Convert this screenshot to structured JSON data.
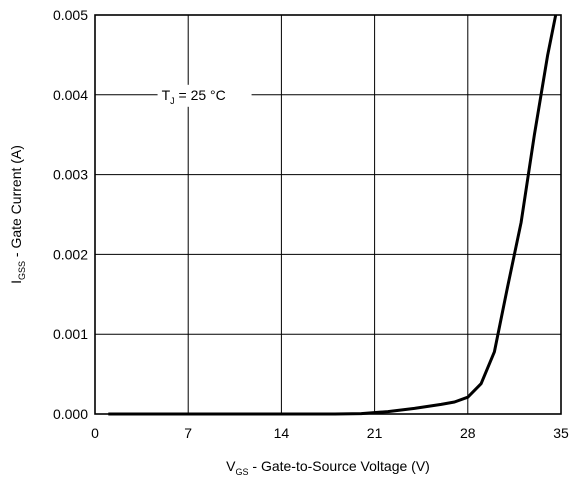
{
  "chart_data": {
    "type": "line",
    "title": "",
    "xlabel": {
      "main": "V",
      "sub": "GS",
      "rest": " - Gate-to-Source Voltage (V)"
    },
    "ylabel": {
      "main": "I",
      "sub": "GSS",
      "rest": " - Gate Current (A)"
    },
    "xlim": [
      0,
      35
    ],
    "ylim": [
      0,
      0.005
    ],
    "x_ticks": [
      0,
      7,
      14,
      21,
      28,
      35
    ],
    "x_tick_labels": [
      "0",
      "7",
      "14",
      "21",
      "28",
      "35"
    ],
    "y_ticks": [
      0,
      0.001,
      0.002,
      0.003,
      0.004,
      0.005
    ],
    "y_tick_labels": [
      "0.000",
      "0.001",
      "0.002",
      "0.003",
      "0.004",
      "0.005"
    ],
    "grid": true,
    "annotation": {
      "main": "T",
      "sub": "J",
      "rest": " = 25 °C",
      "x": 5,
      "y": 0.004
    },
    "series": [
      {
        "color": "#000000",
        "x": [
          1,
          10,
          18,
          20,
          22,
          24,
          26,
          27,
          28,
          29,
          30,
          31,
          32,
          33,
          34,
          34.6
        ],
        "y": [
          0,
          0,
          0,
          5e-06,
          3e-05,
          7e-05,
          0.00012,
          0.00015,
          0.00021,
          0.00038,
          0.00078,
          0.0016,
          0.0024,
          0.0035,
          0.0045,
          0.005
        ]
      }
    ]
  }
}
